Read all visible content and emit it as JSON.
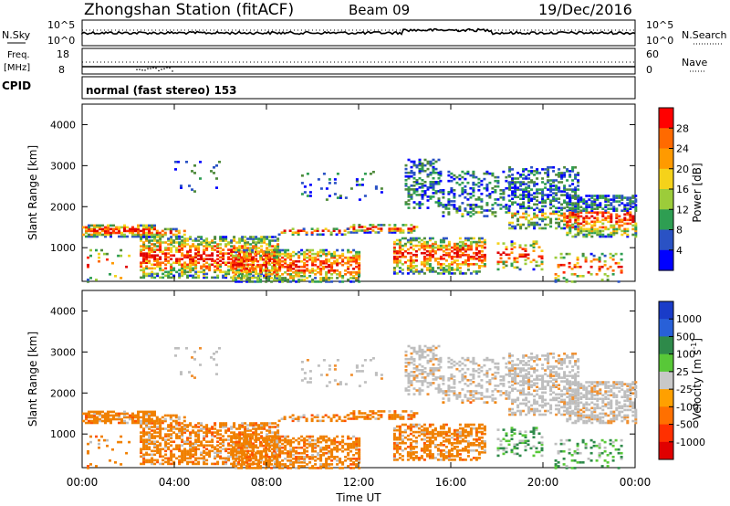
{
  "header": {
    "station": "Zhongshan Station (fitACF)",
    "beam": "Beam 09",
    "date": "19/Dec/2016"
  },
  "noise_panel": {
    "left_label": "N.Sky",
    "left_ticks": [
      "10^5",
      "10^0"
    ],
    "right_label": "N.Search",
    "right_ticks": [
      "10^5",
      "10^0"
    ]
  },
  "freq_panel": {
    "left_label_top": "Freq.",
    "left_label_bottom": "[MHz]",
    "left_ticks": [
      "18",
      "8"
    ],
    "right_label": "Nave",
    "right_ticks": [
      "60",
      "0"
    ]
  },
  "cpid": {
    "label": "CPID",
    "text": "normal (fast stereo) 153"
  },
  "colors": {
    "power": [
      "#0000ff",
      "#2a52c4",
      "#4f8a3c",
      "#2e9e52",
      "#9ccc3a",
      "#f5d21a",
      "#ff9a00",
      "#ff6a00",
      "#ff2a00",
      "#e00000"
    ],
    "velocity_scatter": "#f08000",
    "ground": "#bebebe"
  },
  "chart_data": [
    {
      "type": "heatmap",
      "title": "Power",
      "ylabel": "Slant Range [km]",
      "ylim": [
        180,
        4500
      ],
      "xlim_hours": [
        0,
        24
      ],
      "y_ticks": [
        "1000",
        "2000",
        "3000",
        "4000"
      ],
      "colorbar_label": "Power [dB]",
      "colorbar_ticks": [
        "4",
        "8",
        "12",
        "16",
        "20",
        "24",
        "28"
      ],
      "colorbar_colors": [
        "#0000ff",
        "#2a52c4",
        "#2e9e52",
        "#9ccc3a",
        "#f5d21a",
        "#ff9a00",
        "#ff6a00",
        "#ff0000"
      ]
    },
    {
      "type": "heatmap",
      "title": "Velocity",
      "ylabel": "Slant Range [km]",
      "ylim": [
        180,
        4500
      ],
      "xlim_hours": [
        0,
        24
      ],
      "y_ticks": [
        "1000",
        "2000",
        "3000",
        "4000"
      ],
      "colorbar_label": "Velocity [m s",
      "colorbar_label_sup": "-1",
      "colorbar_ticks": [
        "1000",
        "500",
        "100",
        "25",
        "-25",
        "-100",
        "-500",
        "-1000"
      ],
      "colorbar_colors": [
        "#1a3cc8",
        "#2860d8",
        "#2e8a4a",
        "#58c838",
        "#c8c8c8",
        "#ffa000",
        "#ff7000",
        "#ff3000",
        "#e00000"
      ],
      "xlabel": "Time UT",
      "x_ticks": [
        "00:00",
        "04:00",
        "08:00",
        "12:00",
        "16:00",
        "20:00",
        "00:00"
      ]
    }
  ]
}
